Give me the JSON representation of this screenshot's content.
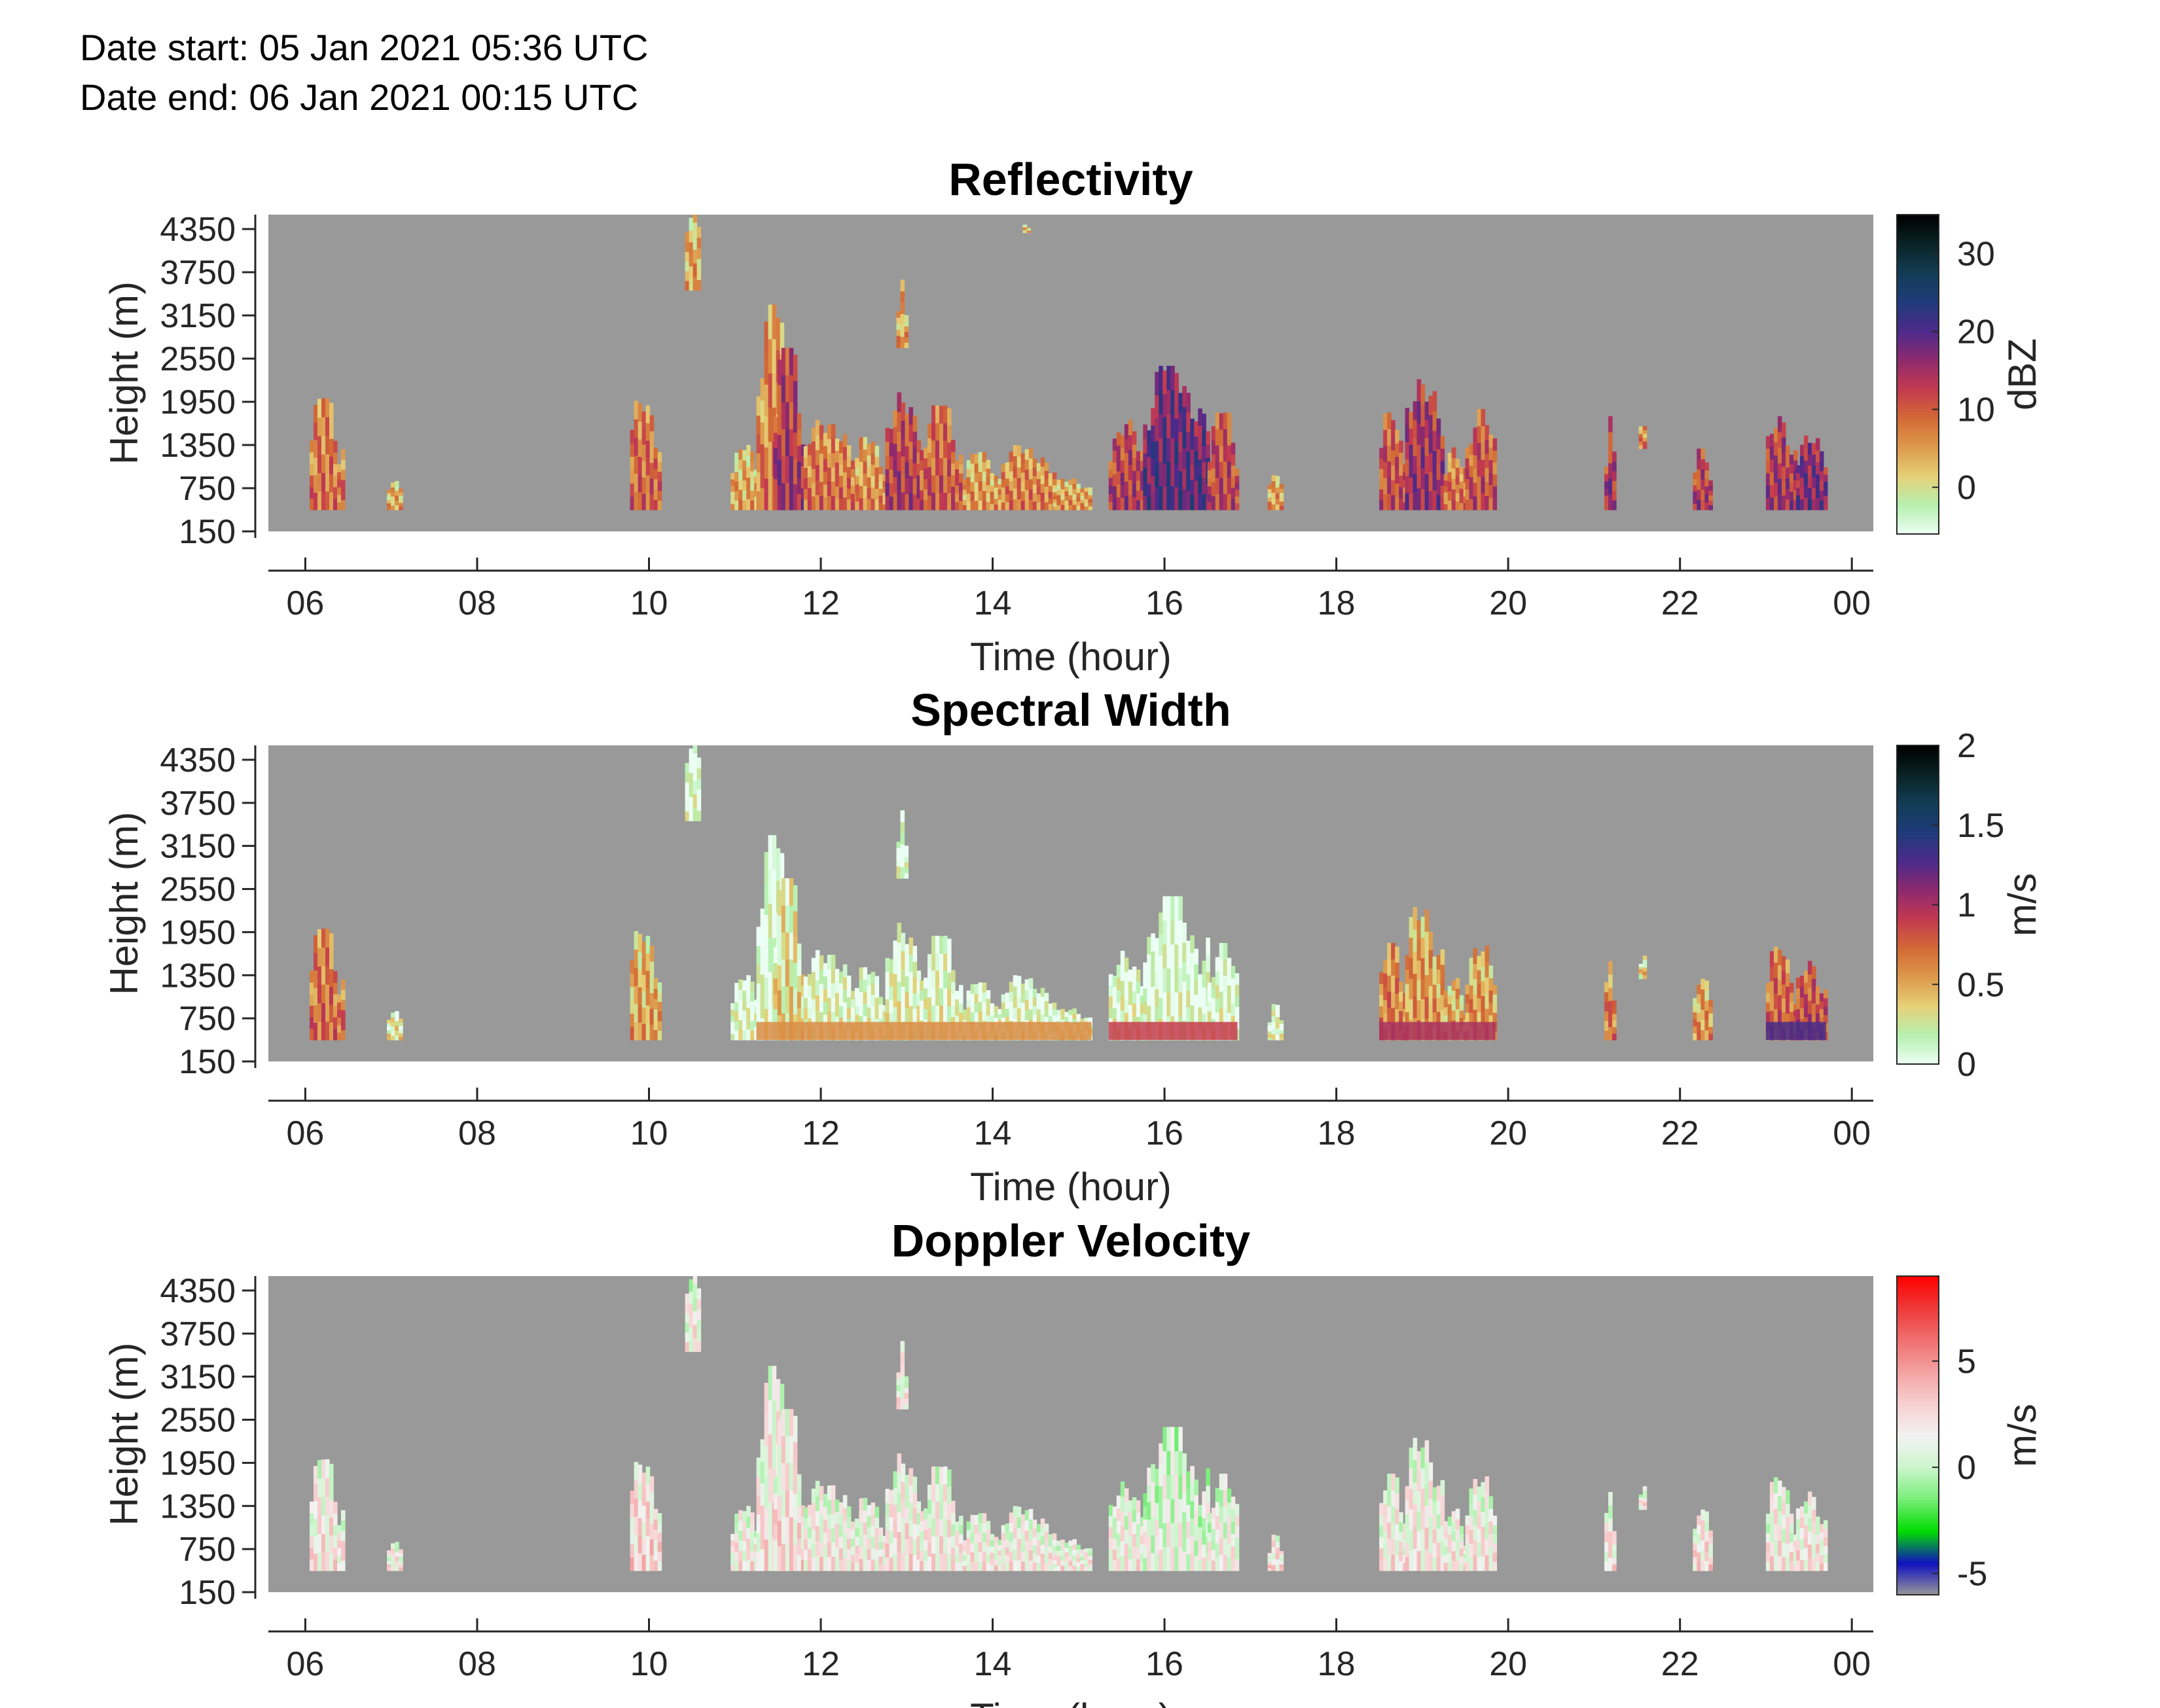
{
  "header": {
    "date_start": "Date start: 05 Jan 2021 05:36 UTC",
    "date_end": "Date end:  06 Jan 2021 00:15 UTC"
  },
  "colors": {
    "no_data": "#999999",
    "axis": "#262626"
  },
  "chart_data": [
    {
      "type": "heatmap",
      "title": "Reflectivity",
      "xlabel": "Time (hour)",
      "ylabel": "Height (m)",
      "colorbar_label": "dBZ",
      "x_ticks": [
        "06",
        "08",
        "10",
        "12",
        "14",
        "16",
        "18",
        "20",
        "22",
        "00"
      ],
      "y_ticks": [
        150,
        750,
        1350,
        1950,
        2550,
        3150,
        3750,
        4350
      ],
      "xlim_hours": [
        5.57,
        24.25
      ],
      "ylim": [
        150,
        4550
      ],
      "clim": [
        -6,
        35
      ],
      "colorbar_ticks": [
        0,
        10,
        20,
        30
      ],
      "colormap": [
        "#ecfff4",
        "#b6f0b0",
        "#e6d178",
        "#dd9a4c",
        "#d36a36",
        "#c43a4f",
        "#8e2a6e",
        "#4d2a8a",
        "#1f3b7a",
        "#123d55",
        "#0a2325",
        "#000000"
      ],
      "cells": [
        {
          "t0": 6.05,
          "t1": 6.42,
          "h0": 450,
          "h1": 2000,
          "v": 9
        },
        {
          "t0": 6.95,
          "t1": 7.12,
          "h0": 450,
          "h1": 850,
          "v": 5
        },
        {
          "t0": 9.78,
          "t1": 10.12,
          "h0": 450,
          "h1": 2050,
          "v": 10
        },
        {
          "t0": 10.42,
          "t1": 10.6,
          "h0": 3500,
          "h1": 4750,
          "v": 5
        },
        {
          "t0": 10.95,
          "t1": 11.25,
          "h0": 450,
          "h1": 1400,
          "v": 5
        },
        {
          "t0": 11.25,
          "t1": 11.65,
          "h0": 450,
          "h1": 3300,
          "v": 8
        },
        {
          "t0": 11.45,
          "t1": 11.8,
          "h0": 450,
          "h1": 2700,
          "v": 15
        },
        {
          "t0": 11.8,
          "t1": 12.4,
          "h0": 450,
          "h1": 1700,
          "v": 9
        },
        {
          "t0": 12.4,
          "t1": 12.75,
          "h0": 450,
          "h1": 1500,
          "v": 7
        },
        {
          "t0": 12.75,
          "t1": 13.15,
          "h0": 450,
          "h1": 2100,
          "v": 14
        },
        {
          "t0": 12.88,
          "t1": 12.98,
          "h0": 2700,
          "h1": 3650,
          "v": 6
        },
        {
          "t0": 13.15,
          "t1": 13.65,
          "h0": 450,
          "h1": 1900,
          "v": 11
        },
        {
          "t0": 13.65,
          "t1": 14.1,
          "h0": 450,
          "h1": 1250,
          "v": 6
        },
        {
          "t0": 14.1,
          "t1": 14.7,
          "h0": 450,
          "h1": 1350,
          "v": 8
        },
        {
          "t0": 14.7,
          "t1": 15.15,
          "h0": 450,
          "h1": 900,
          "v": 6
        },
        {
          "t0": 14.35,
          "t1": 14.4,
          "h0": 4300,
          "h1": 4450,
          "v": 4
        },
        {
          "t0": 15.35,
          "t1": 15.75,
          "h0": 450,
          "h1": 1700,
          "v": 14
        },
        {
          "t0": 15.75,
          "t1": 16.5,
          "h0": 450,
          "h1": 2450,
          "v": 20
        },
        {
          "t0": 16.5,
          "t1": 16.85,
          "h0": 450,
          "h1": 1800,
          "v": 13
        },
        {
          "t0": 17.2,
          "t1": 17.35,
          "h0": 450,
          "h1": 950,
          "v": 6
        },
        {
          "t0": 18.5,
          "t1": 18.8,
          "h0": 450,
          "h1": 1800,
          "v": 12
        },
        {
          "t0": 18.8,
          "t1": 19.25,
          "h0": 450,
          "h1": 2300,
          "v": 16
        },
        {
          "t0": 19.25,
          "t1": 19.5,
          "h0": 450,
          "h1": 1350,
          "v": 9
        },
        {
          "t0": 19.5,
          "t1": 19.85,
          "h0": 450,
          "h1": 1850,
          "v": 12
        },
        {
          "t0": 21.12,
          "t1": 21.22,
          "h0": 450,
          "h1": 1750,
          "v": 15
        },
        {
          "t0": 21.52,
          "t1": 21.58,
          "h0": 1300,
          "h1": 1750,
          "v": 8
        },
        {
          "t0": 22.15,
          "t1": 22.35,
          "h0": 450,
          "h1": 1300,
          "v": 14
        },
        {
          "t0": 23.0,
          "t1": 23.35,
          "h0": 450,
          "h1": 1750,
          "v": 15
        },
        {
          "t0": 23.35,
          "t1": 23.7,
          "h0": 450,
          "h1": 1550,
          "v": 18
        }
      ]
    },
    {
      "type": "heatmap",
      "title": "Spectral Width",
      "xlabel": "Time (hour)",
      "ylabel": "Height (m)",
      "colorbar_label": "m/s",
      "x_ticks": [
        "06",
        "08",
        "10",
        "12",
        "14",
        "16",
        "18",
        "20",
        "22",
        "00"
      ],
      "y_ticks": [
        150,
        750,
        1350,
        1950,
        2550,
        3150,
        3750,
        4350
      ],
      "xlim_hours": [
        5.57,
        24.25
      ],
      "ylim": [
        150,
        4550
      ],
      "clim": [
        0,
        2
      ],
      "colorbar_ticks": [
        "0",
        "0.5",
        "1",
        "1.5",
        "2"
      ],
      "colormap": [
        "#ecfff4",
        "#b6f0b0",
        "#e6d178",
        "#dd9a4c",
        "#d36a36",
        "#c43a4f",
        "#8e2a6e",
        "#4d2a8a",
        "#1f3b7a",
        "#123d55",
        "#0a2325",
        "#000000"
      ],
      "cells": [
        {
          "t0": 6.05,
          "t1": 6.42,
          "h0": 450,
          "h1": 2000,
          "v": 0.75
        },
        {
          "t0": 6.95,
          "t1": 7.12,
          "h0": 450,
          "h1": 850,
          "v": 0.3
        },
        {
          "t0": 9.78,
          "t1": 10.12,
          "h0": 450,
          "h1": 2050,
          "v": 0.55
        },
        {
          "t0": 10.42,
          "t1": 10.6,
          "h0": 3500,
          "h1": 4750,
          "v": 0.12
        },
        {
          "t0": 10.95,
          "t1": 11.25,
          "h0": 450,
          "h1": 1400,
          "v": 0.15
        },
        {
          "t0": 11.25,
          "t1": 11.65,
          "h0": 450,
          "h1": 3300,
          "v": 0.12
        },
        {
          "t0": 11.45,
          "t1": 11.8,
          "h0": 450,
          "h1": 2700,
          "v": 0.35
        },
        {
          "t0": 11.8,
          "t1": 12.4,
          "h0": 450,
          "h1": 1700,
          "v": 0.2
        },
        {
          "t0": 12.4,
          "t1": 12.75,
          "h0": 450,
          "h1": 1500,
          "v": 0.18
        },
        {
          "t0": 12.75,
          "t1": 13.15,
          "h0": 450,
          "h1": 2100,
          "v": 0.22
        },
        {
          "t0": 12.88,
          "t1": 12.98,
          "h0": 2700,
          "h1": 3650,
          "v": 0.12
        },
        {
          "t0": 13.15,
          "t1": 13.65,
          "h0": 450,
          "h1": 1900,
          "v": 0.2
        },
        {
          "t0": 13.65,
          "t1": 14.1,
          "h0": 450,
          "h1": 1250,
          "v": 0.2
        },
        {
          "t0": 14.1,
          "t1": 14.7,
          "h0": 450,
          "h1": 1350,
          "v": 0.18
        },
        {
          "t0": 14.7,
          "t1": 15.15,
          "h0": 450,
          "h1": 900,
          "v": 0.25
        },
        {
          "t0": 15.35,
          "t1": 15.75,
          "h0": 450,
          "h1": 1700,
          "v": 0.18
        },
        {
          "t0": 15.75,
          "t1": 16.5,
          "h0": 450,
          "h1": 2450,
          "v": 0.12
        },
        {
          "t0": 16.5,
          "t1": 16.85,
          "h0": 450,
          "h1": 1800,
          "v": 0.15
        },
        {
          "t0": 17.2,
          "t1": 17.35,
          "h0": 450,
          "h1": 950,
          "v": 0.2
        },
        {
          "t0": 18.5,
          "t1": 18.8,
          "h0": 450,
          "h1": 1800,
          "v": 0.7
        },
        {
          "t0": 18.8,
          "t1": 19.25,
          "h0": 450,
          "h1": 2300,
          "v": 0.6
        },
        {
          "t0": 19.25,
          "t1": 19.5,
          "h0": 450,
          "h1": 1350,
          "v": 0.55
        },
        {
          "t0": 19.5,
          "t1": 19.85,
          "h0": 450,
          "h1": 1850,
          "v": 0.6
        },
        {
          "t0": 21.12,
          "t1": 21.22,
          "h0": 450,
          "h1": 1750,
          "v": 0.7
        },
        {
          "t0": 21.52,
          "t1": 21.58,
          "h0": 1300,
          "h1": 1750,
          "v": 0.4
        },
        {
          "t0": 22.15,
          "t1": 22.35,
          "h0": 450,
          "h1": 1300,
          "v": 0.6
        },
        {
          "t0": 23.0,
          "t1": 23.35,
          "h0": 450,
          "h1": 1750,
          "v": 0.8
        },
        {
          "t0": 23.35,
          "t1": 23.7,
          "h0": 450,
          "h1": 1550,
          "v": 0.9
        }
      ],
      "bottom_band": [
        {
          "t0": 11.25,
          "t1": 15.15,
          "v": 0.6
        },
        {
          "t0": 15.35,
          "t1": 16.85,
          "v": 0.9
        },
        {
          "t0": 18.5,
          "t1": 19.85,
          "v": 1.0
        },
        {
          "t0": 23.0,
          "t1": 23.7,
          "v": 1.3
        }
      ]
    },
    {
      "type": "heatmap",
      "title": "Doppler Velocity",
      "xlabel": "Time (hour)",
      "ylabel": "Height (m)",
      "colorbar_label": "m/s",
      "x_ticks": [
        "06",
        "08",
        "10",
        "12",
        "14",
        "16",
        "18",
        "20",
        "22",
        "00"
      ],
      "y_ticks": [
        150,
        750,
        1350,
        1950,
        2550,
        3150,
        3750,
        4350
      ],
      "xlim_hours": [
        5.57,
        24.25
      ],
      "ylim": [
        150,
        4550
      ],
      "clim": [
        -6,
        9
      ],
      "colorbar_ticks": [
        "-5",
        "0",
        "5"
      ],
      "colormap": [
        "#999999",
        "#1010c0",
        "#00dd00",
        "#77ee77",
        "#ccf5cc",
        "#f2f2f2",
        "#f8d0d0",
        "#f3a2a2",
        "#f07070",
        "#ee3a3a",
        "#ff0000"
      ],
      "cells": [
        {
          "t0": 6.05,
          "t1": 6.42,
          "h0": 450,
          "h1": 2000,
          "v": 2.2
        },
        {
          "t0": 6.95,
          "t1": 7.12,
          "h0": 450,
          "h1": 850,
          "v": 2.0
        },
        {
          "t0": 9.78,
          "t1": 10.12,
          "h0": 450,
          "h1": 2050,
          "v": 2.8
        },
        {
          "t0": 10.42,
          "t1": 10.6,
          "h0": 3500,
          "h1": 4750,
          "v": 1.8
        },
        {
          "t0": 10.95,
          "t1": 11.25,
          "h0": 450,
          "h1": 1400,
          "v": 2.0
        },
        {
          "t0": 11.25,
          "t1": 11.65,
          "h0": 450,
          "h1": 3300,
          "v": 2.2
        },
        {
          "t0": 11.45,
          "t1": 11.8,
          "h0": 450,
          "h1": 2700,
          "v": 2.5
        },
        {
          "t0": 11.8,
          "t1": 12.4,
          "h0": 450,
          "h1": 1700,
          "v": 2.0
        },
        {
          "t0": 12.4,
          "t1": 12.75,
          "h0": 450,
          "h1": 1500,
          "v": 2.0
        },
        {
          "t0": 12.75,
          "t1": 13.15,
          "h0": 450,
          "h1": 2100,
          "v": 2.2
        },
        {
          "t0": 12.88,
          "t1": 12.98,
          "h0": 2700,
          "h1": 3650,
          "v": 2.0
        },
        {
          "t0": 13.15,
          "t1": 13.65,
          "h0": 450,
          "h1": 1900,
          "v": 2.0
        },
        {
          "t0": 13.65,
          "t1": 14.1,
          "h0": 450,
          "h1": 1250,
          "v": 2.0
        },
        {
          "t0": 14.1,
          "t1": 14.7,
          "h0": 450,
          "h1": 1350,
          "v": 2.0
        },
        {
          "t0": 14.7,
          "t1": 15.15,
          "h0": 450,
          "h1": 900,
          "v": 2.0
        },
        {
          "t0": 15.35,
          "t1": 15.75,
          "h0": 450,
          "h1": 1700,
          "v": 1.8
        },
        {
          "t0": 15.75,
          "t1": 16.5,
          "h0": 450,
          "h1": 2450,
          "v": 1.2
        },
        {
          "t0": 16.5,
          "t1": 16.85,
          "h0": 450,
          "h1": 1800,
          "v": 1.6
        },
        {
          "t0": 17.2,
          "t1": 17.35,
          "h0": 450,
          "h1": 950,
          "v": 2.5
        },
        {
          "t0": 18.5,
          "t1": 18.8,
          "h0": 450,
          "h1": 1800,
          "v": 2.0
        },
        {
          "t0": 18.8,
          "t1": 19.25,
          "h0": 450,
          "h1": 2300,
          "v": 2.0
        },
        {
          "t0": 19.25,
          "t1": 19.5,
          "h0": 450,
          "h1": 1350,
          "v": 2.0
        },
        {
          "t0": 19.5,
          "t1": 19.85,
          "h0": 450,
          "h1": 1850,
          "v": 2.0
        },
        {
          "t0": 21.12,
          "t1": 21.22,
          "h0": 450,
          "h1": 1750,
          "v": 2.2
        },
        {
          "t0": 21.52,
          "t1": 21.58,
          "h0": 1300,
          "h1": 1750,
          "v": 2.0
        },
        {
          "t0": 22.15,
          "t1": 22.35,
          "h0": 450,
          "h1": 1300,
          "v": 2.5
        },
        {
          "t0": 23.0,
          "t1": 23.35,
          "h0": 450,
          "h1": 1750,
          "v": 2.0
        },
        {
          "t0": 23.35,
          "t1": 23.7,
          "h0": 450,
          "h1": 1550,
          "v": 2.2
        }
      ]
    }
  ]
}
